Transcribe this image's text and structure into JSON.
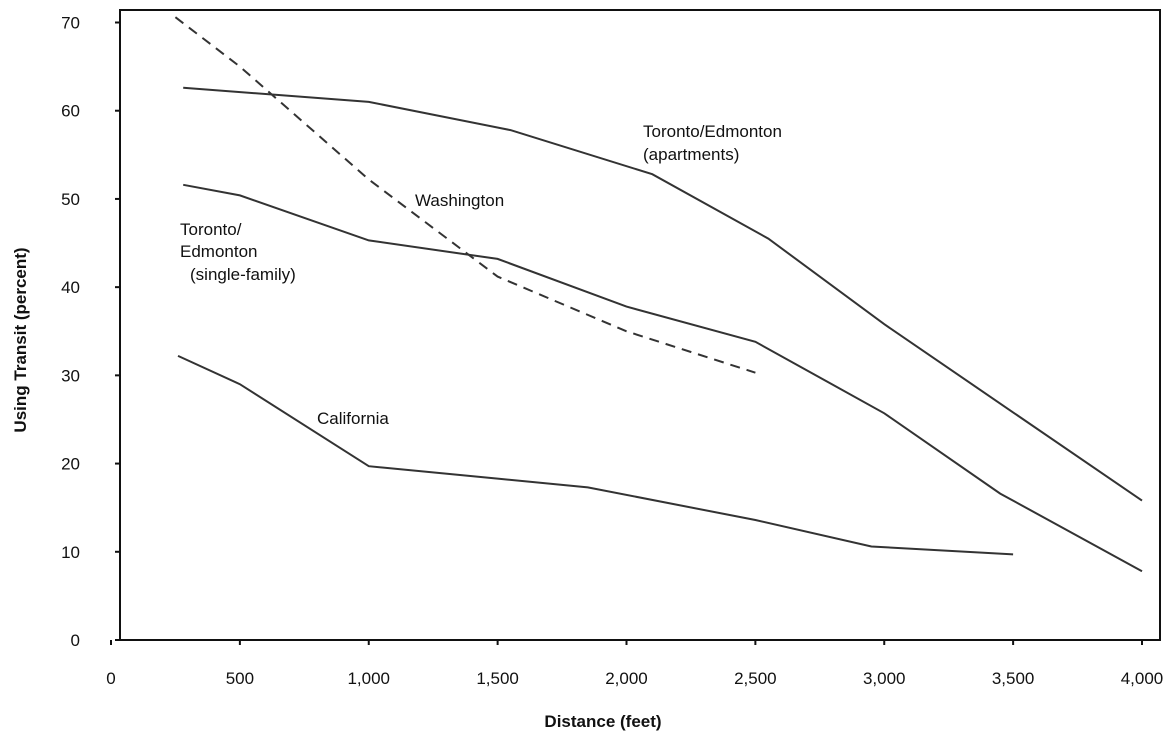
{
  "chart_data": {
    "type": "line",
    "title": "",
    "xlabel": "Distance (feet)",
    "ylabel": "Using Transit (percent)",
    "xlim": [
      0,
      4000
    ],
    "ylim": [
      0,
      70
    ],
    "x_ticks": [
      0,
      500,
      1000,
      1500,
      2000,
      2500,
      3000,
      3500,
      4000
    ],
    "x_tick_labels": [
      "0",
      "500",
      "1,000",
      "1,500",
      "2,000",
      "2,500",
      "3,000",
      "3,500",
      "4,000"
    ],
    "y_ticks": [
      0,
      10,
      20,
      30,
      40,
      50,
      60,
      70
    ],
    "y_tick_labels": [
      "0",
      "10",
      "20",
      "30",
      "40",
      "50",
      "60",
      "70"
    ],
    "grid": false,
    "legend": "none",
    "series": [
      {
        "name": "Toronto/Edmonton (apartments)",
        "style": "solid",
        "points": [
          [
            280,
            62.6
          ],
          [
            1000,
            61
          ],
          [
            1550,
            57.8
          ],
          [
            2100,
            52.8
          ],
          [
            2550,
            45.5
          ],
          [
            3000,
            35.8
          ],
          [
            3500,
            25.8
          ],
          [
            4000,
            15.8
          ]
        ]
      },
      {
        "name": "Toronto/Edmonton (single-family)",
        "style": "solid",
        "points": [
          [
            280,
            51.6
          ],
          [
            500,
            50.4
          ],
          [
            1000,
            45.3
          ],
          [
            1500,
            43.2
          ],
          [
            2000,
            37.8
          ],
          [
            2500,
            33.8
          ],
          [
            3000,
            25.7
          ],
          [
            3450,
            16.6
          ],
          [
            4000,
            7.8
          ]
        ]
      },
      {
        "name": "Washington",
        "style": "dashed",
        "points": [
          [
            250,
            70.6
          ],
          [
            500,
            65
          ],
          [
            1000,
            52.2
          ],
          [
            1500,
            41.2
          ],
          [
            2000,
            35
          ],
          [
            2500,
            30.3
          ]
        ]
      },
      {
        "name": "California",
        "style": "solid",
        "points": [
          [
            260,
            32.2
          ],
          [
            500,
            29
          ],
          [
            1000,
            19.7
          ],
          [
            1500,
            18.3
          ],
          [
            1850,
            17.3
          ],
          [
            2500,
            13.6
          ],
          [
            2950,
            10.6
          ],
          [
            3500,
            9.7
          ]
        ]
      }
    ],
    "annotations": [
      {
        "lines": [
          "Toronto/Edmonton",
          "(apartments)"
        ],
        "series": "Toronto/Edmonton (apartments)"
      },
      {
        "lines": [
          "Washington"
        ],
        "series": "Washington"
      },
      {
        "lines": [
          "Toronto/",
          "Edmonton",
          "(single-family)"
        ],
        "series": "Toronto/Edmonton (single-family)"
      },
      {
        "lines": [
          "California"
        ],
        "series": "California"
      }
    ],
    "colors": {
      "line": "#333333",
      "axis": "#111111",
      "text": "#111111",
      "background": "#ffffff"
    }
  }
}
